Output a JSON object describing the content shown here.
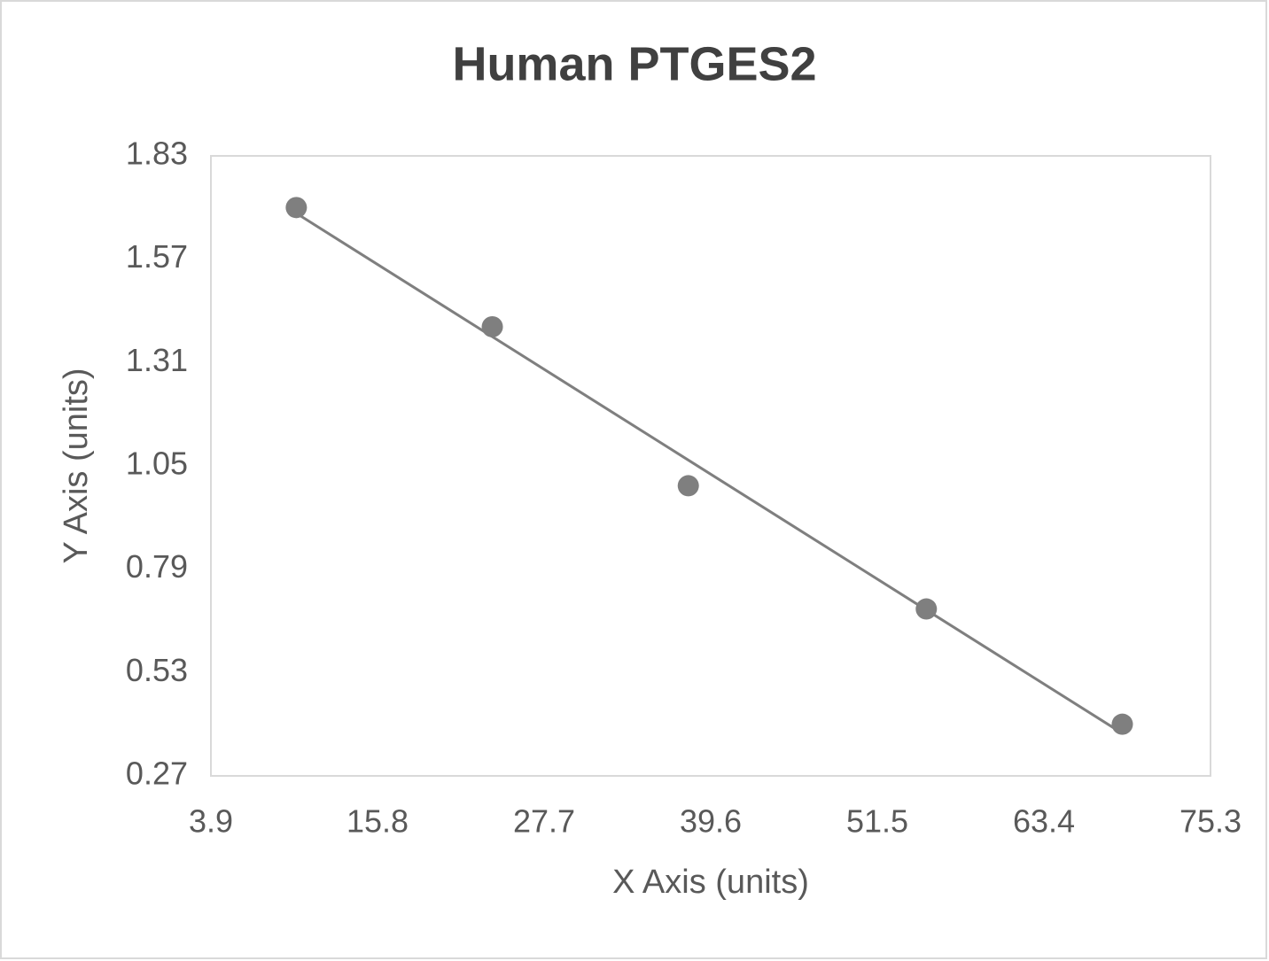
{
  "chart_data": {
    "type": "scatter",
    "title": "Human PTGES2",
    "x_label": "X Axis (units)",
    "y_label": "Y Axis (units)",
    "x": [
      10.0,
      24.0,
      38.0,
      55.0,
      69.0
    ],
    "values": [
      1.7,
      1.4,
      1.0,
      0.69,
      0.4
    ],
    "color": "#7f7f7f",
    "trendline": true,
    "grid": false,
    "xlim": [
      3.9,
      75.3
    ],
    "xticks": [
      3.9,
      15.8,
      27.7,
      39.6,
      51.5,
      63.4,
      75.3
    ],
    "ylim": [
      0.27,
      1.83
    ],
    "yticks": [
      0.27,
      0.53,
      0.79,
      1.05,
      1.31,
      1.57,
      1.83
    ]
  }
}
